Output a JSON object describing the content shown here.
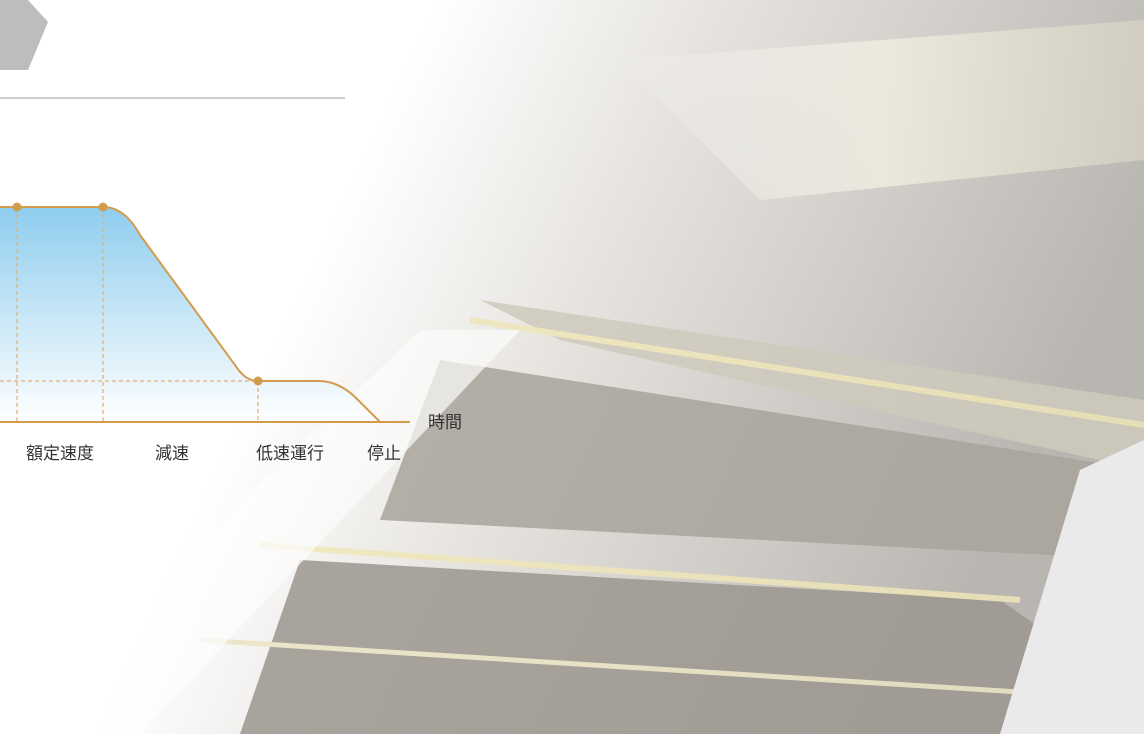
{
  "diagram": {
    "phases": [
      "額定速度",
      "減速",
      "低速運行",
      "停止"
    ],
    "axis_label": "時間"
  }
}
